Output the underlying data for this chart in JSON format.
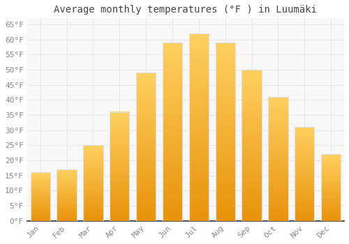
{
  "title": "Average monthly temperatures (°F ) in Luumäki",
  "months": [
    "Jan",
    "Feb",
    "Mar",
    "Apr",
    "May",
    "Jun",
    "Jul",
    "Aug",
    "Sep",
    "Oct",
    "Nov",
    "Dec"
  ],
  "values": [
    16.0,
    17.0,
    25.0,
    36.0,
    49.0,
    59.0,
    62.0,
    59.0,
    50.0,
    41.0,
    31.0,
    22.0
  ],
  "bar_color_top": "#FFB300",
  "bar_color_bottom": "#FFA000",
  "bar_edge_color": "#E0E0E0",
  "ylim": [
    0,
    67
  ],
  "yticks": [
    0,
    5,
    10,
    15,
    20,
    25,
    30,
    35,
    40,
    45,
    50,
    55,
    60,
    65
  ],
  "ytick_labels": [
    "0°F",
    "5°F",
    "10°F",
    "15°F",
    "20°F",
    "25°F",
    "30°F",
    "35°F",
    "40°F",
    "45°F",
    "50°F",
    "55°F",
    "60°F",
    "65°F"
  ],
  "bg_color": "#ffffff",
  "plot_bg_color": "#f8f8f8",
  "grid_color": "#e8e8e8",
  "tick_color": "#888888",
  "spine_color": "#333333",
  "title_fontsize": 10,
  "tick_fontsize": 8,
  "bar_width": 0.75
}
